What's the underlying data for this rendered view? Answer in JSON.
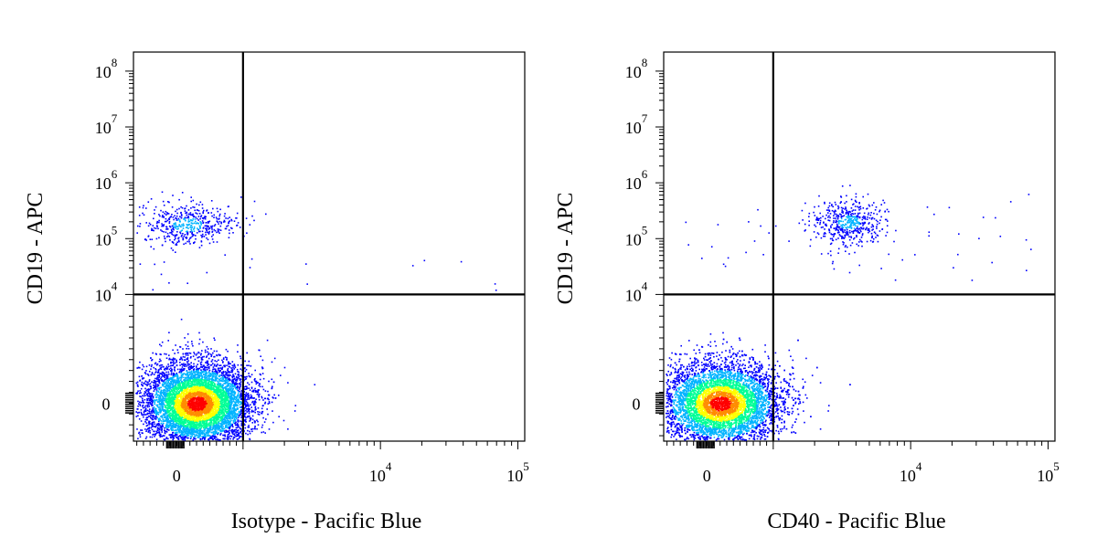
{
  "chart_data": [
    {
      "type": "scatter",
      "title": "",
      "xlabel": "Isotype - Pacific Blue",
      "ylabel": "CD19 - APC",
      "x_ticks": [
        {
          "base": "0",
          "exp": "",
          "value": 0
        },
        {
          "base": "10",
          "exp": "4",
          "value": 10000
        },
        {
          "base": "10",
          "exp": "5",
          "value": 100000
        }
      ],
      "y_ticks": [
        {
          "base": "0",
          "exp": "",
          "value": 0
        },
        {
          "base": "10",
          "exp": "4",
          "value": 10000
        },
        {
          "base": "10",
          "exp": "5",
          "value": 100000
        },
        {
          "base": "10",
          "exp": "6",
          "value": 1000000
        },
        {
          "base": "10",
          "exp": "7",
          "value": 10000000
        },
        {
          "base": "10",
          "exp": "8",
          "value": 100000000
        }
      ],
      "x_scale": "biexponential",
      "y_scale": "biexponential",
      "gate_x": 1000,
      "gate_y": 10000,
      "populations": [
        {
          "x_center": 300,
          "y_center": 0,
          "count": 7000,
          "density": "high"
        },
        {
          "x_center": 150,
          "y_center": 180000,
          "count": 500,
          "density": "low"
        }
      ]
    },
    {
      "type": "scatter",
      "title": "",
      "xlabel": "CD40 - Pacific Blue",
      "ylabel": "CD19 - APC",
      "x_ticks": [
        {
          "base": "0",
          "exp": "",
          "value": 0
        },
        {
          "base": "10",
          "exp": "4",
          "value": 10000
        },
        {
          "base": "10",
          "exp": "5",
          "value": 100000
        }
      ],
      "y_ticks": [
        {
          "base": "0",
          "exp": "",
          "value": 0
        },
        {
          "base": "10",
          "exp": "4",
          "value": 10000
        },
        {
          "base": "10",
          "exp": "5",
          "value": 100000
        },
        {
          "base": "10",
          "exp": "6",
          "value": 1000000
        },
        {
          "base": "10",
          "exp": "7",
          "value": 10000000
        },
        {
          "base": "10",
          "exp": "8",
          "value": 100000000
        }
      ],
      "x_scale": "biexponential",
      "y_scale": "biexponential",
      "gate_x": 1000,
      "gate_y": 10000,
      "populations": [
        {
          "x_center": 200,
          "y_center": 0,
          "count": 7000,
          "density": "high"
        },
        {
          "x_center": 3500,
          "y_center": 200000,
          "count": 500,
          "density": "low"
        }
      ]
    }
  ],
  "colors": {
    "density_scale": [
      "#0000ff",
      "#00b4ff",
      "#00ff96",
      "#ffff00",
      "#ff8c00",
      "#ff0000"
    ],
    "axis": "#000000",
    "background": "#ffffff"
  }
}
